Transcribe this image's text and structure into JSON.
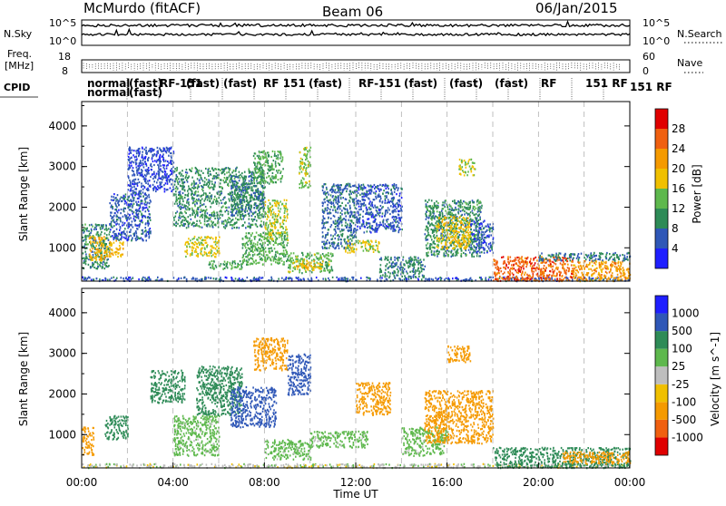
{
  "header": {
    "title": "McMurdo (fitACF)",
    "beam": "Beam 06",
    "date": "06/Jan/2015"
  },
  "top_panels": {
    "nsky_label": "N.Sky",
    "nsearch_label": "N.Search",
    "nsky_ticks": [
      "10^5",
      "10^0"
    ],
    "nsearch_ticks": [
      "10^5",
      "10^0"
    ],
    "freq_label_1": "Freq.",
    "freq_label_2": "[MHz]",
    "freq_ticks": [
      "18",
      "8"
    ],
    "nave_label": "Nave",
    "nave_ticks": [
      "60",
      "0"
    ],
    "cpid_label": "CPID",
    "cpid_texts": [
      "normal",
      "normal",
      "(fast)",
      "(fast)",
      "RF-151",
      "(fast)",
      "(fast)",
      "RF 151",
      "(fast)",
      "RF-151",
      "(fast)",
      "(fast)",
      "(fast)",
      "RF",
      "151 RF",
      "151 RF"
    ]
  },
  "chart_data": [
    {
      "type": "heatmap",
      "name": "power",
      "xlabel": "Time UT",
      "ylabel": "Slant Range [km]",
      "xlim": [
        0,
        24
      ],
      "ylim": [
        180,
        4600
      ],
      "x_ticks": [
        "00:00",
        "04:00",
        "08:00",
        "12:00",
        "16:00",
        "20:00",
        "00:00"
      ],
      "y_ticks": [
        "1000",
        "2000",
        "3000",
        "4000"
      ],
      "colorbar": {
        "label": "Power [dB]",
        "ticks": [
          "4",
          "8",
          "12",
          "16",
          "20",
          "24",
          "28"
        ],
        "levels": [
          0,
          4,
          8,
          12,
          16,
          20,
          24,
          28,
          32
        ],
        "colors": [
          "#1f1fff",
          "#2f57b7",
          "#2e8b57",
          "#5eb84d",
          "#f0c000",
          "#f59a00",
          "#f06010",
          "#e00000"
        ]
      },
      "patches": [
        {
          "x": [
            0.0,
            24.0
          ],
          "y": [
            200,
            300
          ],
          "v": 6
        },
        {
          "x": [
            0.0,
            1.2
          ],
          "y": [
            500,
            1600
          ],
          "v": 10
        },
        {
          "x": [
            0.3,
            1.0
          ],
          "y": [
            700,
            1300
          ],
          "v": 20
        },
        {
          "x": [
            1.0,
            1.8
          ],
          "y": [
            800,
            1200
          ],
          "v": 19
        },
        {
          "x": [
            1.2,
            3.0
          ],
          "y": [
            1200,
            2400
          ],
          "v": 6
        },
        {
          "x": [
            2.0,
            4.0
          ],
          "y": [
            2400,
            3500
          ],
          "v": 5
        },
        {
          "x": [
            4.0,
            8.0
          ],
          "y": [
            1500,
            3000
          ],
          "v": 10
        },
        {
          "x": [
            4.5,
            6.0
          ],
          "y": [
            800,
            1300
          ],
          "v": 17
        },
        {
          "x": [
            5.5,
            7.0
          ],
          "y": [
            500,
            700
          ],
          "v": 12
        },
        {
          "x": [
            6.5,
            8.0
          ],
          "y": [
            1800,
            2800
          ],
          "v": 9
        },
        {
          "x": [
            7.0,
            9.0
          ],
          "y": [
            600,
            1400
          ],
          "v": 13
        },
        {
          "x": [
            7.5,
            8.8
          ],
          "y": [
            2600,
            3400
          ],
          "v": 12
        },
        {
          "x": [
            8.0,
            9.0
          ],
          "y": [
            1200,
            2200
          ],
          "v": 16
        },
        {
          "x": [
            9.0,
            11.0
          ],
          "y": [
            400,
            900
          ],
          "v": 14
        },
        {
          "x": [
            9.2,
            10.5
          ],
          "y": [
            500,
            700
          ],
          "v": 19
        },
        {
          "x": [
            9.5,
            10.0
          ],
          "y": [
            2500,
            3500
          ],
          "v": 15
        },
        {
          "x": [
            10.5,
            12.0
          ],
          "y": [
            1000,
            2600
          ],
          "v": 7
        },
        {
          "x": [
            11.5,
            13.0
          ],
          "y": [
            900,
            1200
          ],
          "v": 17
        },
        {
          "x": [
            12.0,
            14.0
          ],
          "y": [
            1400,
            2600
          ],
          "v": 6
        },
        {
          "x": [
            13.0,
            15.0
          ],
          "y": [
            300,
            800
          ],
          "v": 9
        },
        {
          "x": [
            15.0,
            17.5
          ],
          "y": [
            800,
            2200
          ],
          "v": 10
        },
        {
          "x": [
            15.5,
            17.0
          ],
          "y": [
            1000,
            1800
          ],
          "v": 18
        },
        {
          "x": [
            16.5,
            17.2
          ],
          "y": [
            2800,
            3200
          ],
          "v": 16
        },
        {
          "x": [
            17.0,
            18.0
          ],
          "y": [
            900,
            1700
          ],
          "v": 6
        },
        {
          "x": [
            18.0,
            21.5
          ],
          "y": [
            200,
            800
          ],
          "v": 26
        },
        {
          "x": [
            21.5,
            24.0
          ],
          "y": [
            200,
            700
          ],
          "v": 22
        },
        {
          "x": [
            20.0,
            24.0
          ],
          "y": [
            700,
            900
          ],
          "v": 9
        }
      ]
    },
    {
      "type": "heatmap",
      "name": "velocity",
      "xlabel": "Time UT",
      "ylabel": "Slant Range [km]",
      "xlim": [
        0,
        24
      ],
      "ylim": [
        180,
        4600
      ],
      "x_ticks": [
        "00:00",
        "04:00",
        "08:00",
        "12:00",
        "16:00",
        "20:00",
        "00:00"
      ],
      "y_ticks": [
        "1000",
        "2000",
        "3000",
        "4000"
      ],
      "colorbar": {
        "label": "Velocity [m s^-1]",
        "ticks": [
          "1000",
          "500",
          "100",
          "25",
          "-25",
          "-100",
          "-500",
          "-1000"
        ],
        "levels": [
          -1500,
          -1000,
          -500,
          -100,
          -25,
          25,
          100,
          500,
          1000,
          1500
        ],
        "colors": [
          "#e00000",
          "#f06010",
          "#f59a00",
          "#f0c000",
          "#bebebe",
          "#5eb84d",
          "#2e8b57",
          "#2f57b7",
          "#1f1fff"
        ]
      },
      "patches": [
        {
          "x": [
            0.0,
            24.0
          ],
          "y": [
            200,
            300
          ],
          "v": 0
        },
        {
          "x": [
            0.0,
            0.5
          ],
          "y": [
            500,
            1200
          ],
          "v": -300
        },
        {
          "x": [
            1.0,
            2.0
          ],
          "y": [
            900,
            1500
          ],
          "v": 200
        },
        {
          "x": [
            3.0,
            4.5
          ],
          "y": [
            1800,
            2600
          ],
          "v": 300
        },
        {
          "x": [
            4.0,
            6.0
          ],
          "y": [
            500,
            1500
          ],
          "v": 60
        },
        {
          "x": [
            5.0,
            7.0
          ],
          "y": [
            1500,
            2700
          ],
          "v": 300
        },
        {
          "x": [
            6.5,
            8.5
          ],
          "y": [
            1200,
            2200
          ],
          "v": 700
        },
        {
          "x": [
            7.5,
            9.0
          ],
          "y": [
            2600,
            3400
          ],
          "v": -300
        },
        {
          "x": [
            8.0,
            10.0
          ],
          "y": [
            400,
            900
          ],
          "v": 60
        },
        {
          "x": [
            9.0,
            10.0
          ],
          "y": [
            2000,
            3000
          ],
          "v": 700
        },
        {
          "x": [
            10.0,
            12.5
          ],
          "y": [
            700,
            1100
          ],
          "v": 60
        },
        {
          "x": [
            12.0,
            13.5
          ],
          "y": [
            1500,
            2300
          ],
          "v": -300
        },
        {
          "x": [
            14.0,
            16.0
          ],
          "y": [
            500,
            1200
          ],
          "v": 60
        },
        {
          "x": [
            15.0,
            18.0
          ],
          "y": [
            800,
            2100
          ],
          "v": -300
        },
        {
          "x": [
            16.0,
            17.0
          ],
          "y": [
            2800,
            3200
          ],
          "v": -300
        },
        {
          "x": [
            18.0,
            24.0
          ],
          "y": [
            200,
            700
          ],
          "v": 200
        },
        {
          "x": [
            21.0,
            24.0
          ],
          "y": [
            300,
            600
          ],
          "v": -300
        }
      ]
    }
  ],
  "colors": {
    "grid_dash": "#b0b0b0",
    "background": "#ffffff"
  }
}
